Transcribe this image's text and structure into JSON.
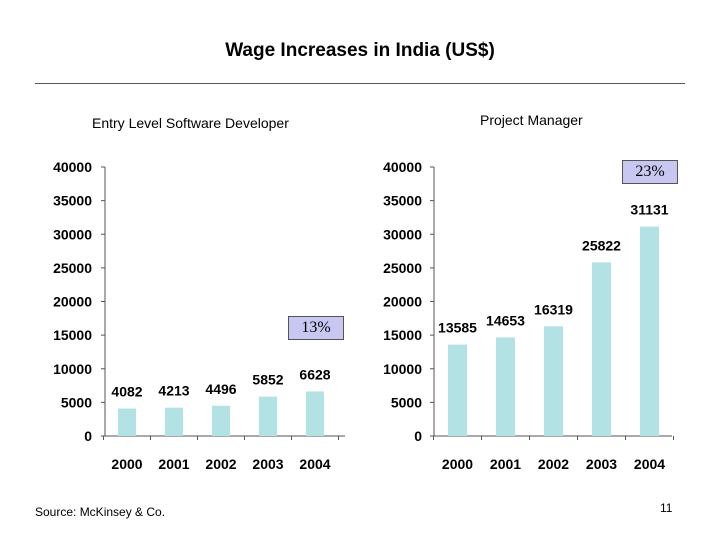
{
  "page": {
    "title": "Wage Increases in India (US$)",
    "source": "Source: McKinsey & Co.",
    "page_number": "11"
  },
  "colors": {
    "bar_fill": "#b3e2e5",
    "axis": "#555555",
    "growth_box": "#c7c7f2"
  },
  "chart_data": [
    {
      "type": "bar",
      "title": "Entry Level Software Developer",
      "categories": [
        "2000",
        "2001",
        "2002",
        "2003",
        "2004"
      ],
      "values": [
        4082,
        4213,
        4496,
        5852,
        6628
      ],
      "ylim": [
        0,
        40000
      ],
      "yticks": [
        0,
        5000,
        10000,
        15000,
        20000,
        25000,
        30000,
        35000,
        40000
      ],
      "growth_label": "13%",
      "grid": false,
      "legend": "none"
    },
    {
      "type": "bar",
      "title": "Project Manager",
      "categories": [
        "2000",
        "2001",
        "2002",
        "2003",
        "2004"
      ],
      "values": [
        13585,
        14653,
        16319,
        25822,
        31131
      ],
      "ylim": [
        0,
        40000
      ],
      "yticks": [
        0,
        5000,
        10000,
        15000,
        20000,
        25000,
        30000,
        35000,
        40000
      ],
      "growth_label": "23%",
      "grid": false,
      "legend": "none"
    }
  ]
}
